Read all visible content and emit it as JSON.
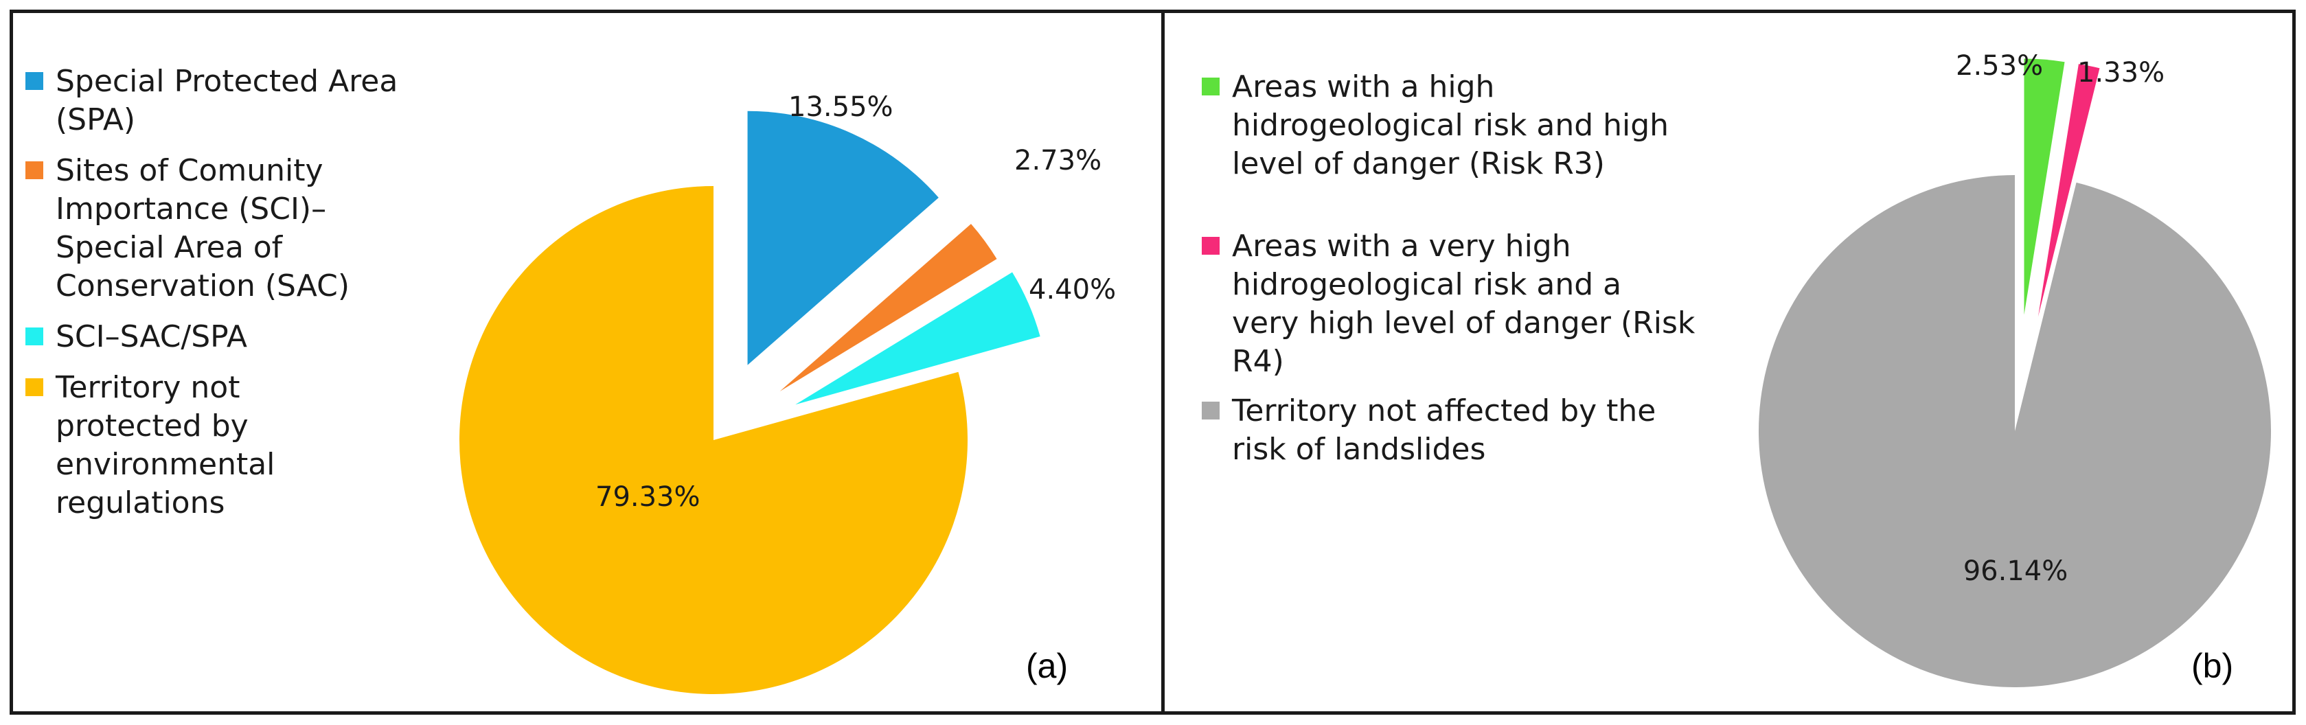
{
  "chart_data": [
    {
      "type": "pie",
      "panel_label": "(a)",
      "slices": [
        {
          "label": "Special Protected Area (SPA)",
          "value": 13.55,
          "value_label": "13.55%",
          "color": "#1e9bd7",
          "exploded": true
        },
        {
          "label": "Sites of Comunity Importance (SCI)– Special Area of Conservation (SAC)",
          "value": 2.73,
          "value_label": "2.73%",
          "color": "#f5822a",
          "exploded": true
        },
        {
          "label": "SCI–SAC/SPA",
          "value": 4.4,
          "value_label": "4.40%",
          "color": "#22f0f0",
          "exploded": true
        },
        {
          "label": "Territory not protected by environmental regulations",
          "value": 79.33,
          "value_label": "79.33%",
          "color": "#fdbd00",
          "exploded": false
        }
      ],
      "legend": [
        {
          "text": "Special Protected Area\n(SPA)",
          "color": "#1e9bd7"
        },
        {
          "text": "Sites of Comunity\nImportance (SCI)–\nSpecial Area of\nConservation (SAC)",
          "color": "#f5822a"
        },
        {
          "text": "SCI–SAC/SPA",
          "color": "#22f0f0"
        },
        {
          "text": "Territory not\nprotected by\nenvironmental\nregulations",
          "color": "#fdbd00"
        }
      ]
    },
    {
      "type": "pie",
      "panel_label": "(b)",
      "slices": [
        {
          "label": "Areas with a high hidrogeological risk and high level of danger (Risk R3)",
          "value": 2.53,
          "value_label": "2.53%",
          "color": "#5ee03c",
          "exploded": true
        },
        {
          "label": "Areas with a very high hidrogeological risk and a very high level of danger (Risk R4)",
          "value": 1.33,
          "value_label": "1.33%",
          "color": "#f52a78",
          "exploded": true
        },
        {
          "label": "Territory not affected by the risk of landslides",
          "value": 96.14,
          "value_label": "96.14%",
          "color": "#a9a9a9",
          "exploded": false
        }
      ],
      "legend": [
        {
          "text": "Areas with a high\nhidrogeological risk and high\nlevel of danger (Risk R3)",
          "color": "#5ee03c"
        },
        {
          "text": "Areas with a very high\nhidrogeological risk and a\nvery high level of danger (Risk\nR4)",
          "color": "#f52a78"
        },
        {
          "text": "Territory not affected by the\nrisk of landslides",
          "color": "#a9a9a9"
        }
      ]
    }
  ]
}
